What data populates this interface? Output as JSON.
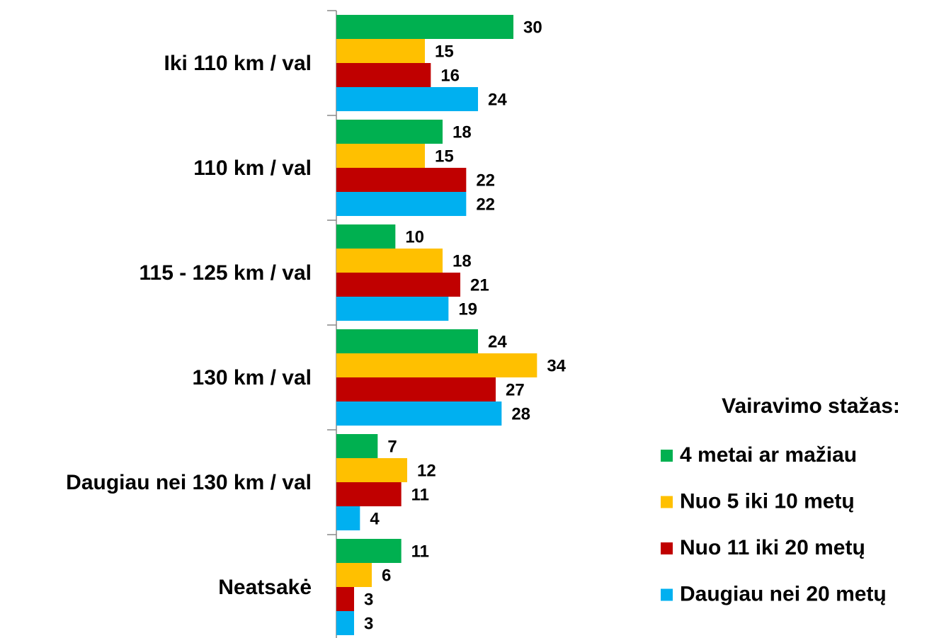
{
  "chart_data": {
    "type": "barh",
    "categories": [
      "Iki 110 km / val",
      "110 km / val",
      "115 - 125 km / val",
      "130 km / val",
      "Daugiau nei 130 km / val",
      "Neatsakė"
    ],
    "legend_title": "Vairavimo stažas:",
    "legend": "right",
    "series": [
      {
        "name": "4 metai ar mažiau",
        "color": "#00b050",
        "values": [
          30,
          18,
          10,
          24,
          7,
          11
        ]
      },
      {
        "name": "Nuo 5 iki 10 metų",
        "color": "#ffc000",
        "values": [
          15,
          15,
          18,
          34,
          12,
          6
        ]
      },
      {
        "name": "Nuo 11 iki 20 metų",
        "color": "#c00000",
        "values": [
          16,
          22,
          21,
          27,
          11,
          3
        ]
      },
      {
        "name": "Daugiau nei 20 metų",
        "color": "#00b0f0",
        "values": [
          24,
          22,
          19,
          28,
          4,
          3
        ]
      }
    ]
  }
}
